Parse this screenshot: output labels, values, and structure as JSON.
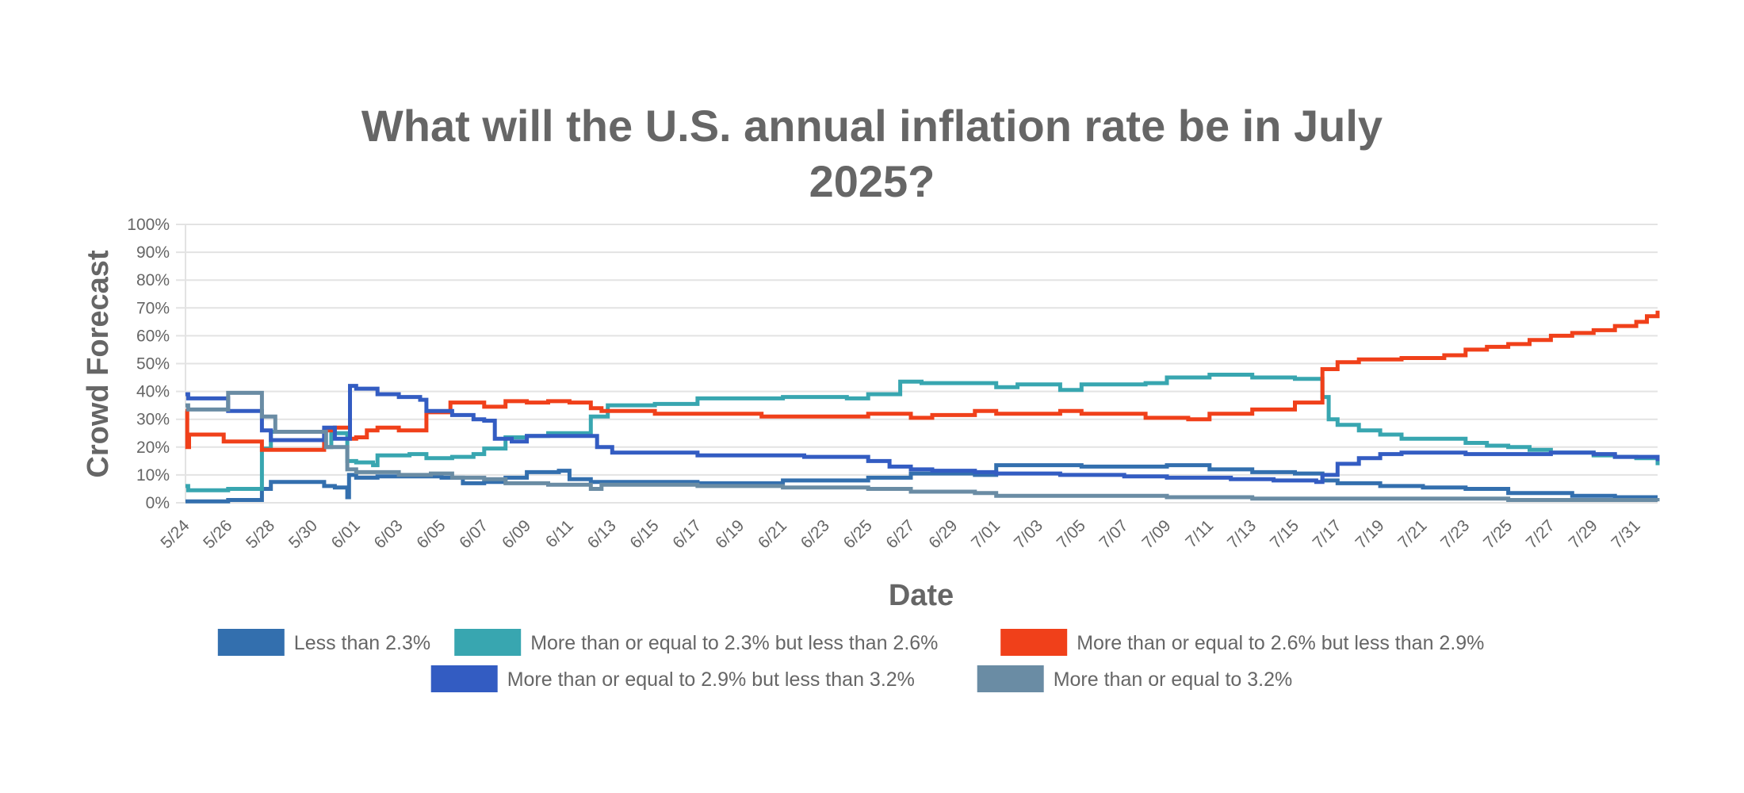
{
  "chart_data": {
    "type": "line",
    "step": true,
    "title": "What will the U.S. annual inflation rate be in July 2025?",
    "title_lines": [
      "What will the U.S. annual inflation rate be in July",
      "2025?"
    ],
    "xlabel": "Date",
    "ylabel": "Crowd Forecast",
    "ylim": [
      0,
      100
    ],
    "xlim": [
      "2025-05-24T00:00",
      "2025-08-01T00:00"
    ],
    "grid": true,
    "legend_position": "bottom",
    "y_ticks": [
      "0%",
      "10%",
      "20%",
      "30%",
      "40%",
      "50%",
      "60%",
      "70%",
      "80%",
      "90%",
      "100%"
    ],
    "x_ticks": [
      {
        "date": "2025-05-24",
        "label": "5/24"
      },
      {
        "date": "2025-05-26",
        "label": "5/26"
      },
      {
        "date": "2025-05-28",
        "label": "5/28"
      },
      {
        "date": "2025-05-30",
        "label": "5/30"
      },
      {
        "date": "2025-06-01",
        "label": "6/01"
      },
      {
        "date": "2025-06-03",
        "label": "6/03"
      },
      {
        "date": "2025-06-05",
        "label": "6/05"
      },
      {
        "date": "2025-06-07",
        "label": "6/07"
      },
      {
        "date": "2025-06-09",
        "label": "6/09"
      },
      {
        "date": "2025-06-11",
        "label": "6/11"
      },
      {
        "date": "2025-06-13",
        "label": "6/13"
      },
      {
        "date": "2025-06-15",
        "label": "6/15"
      },
      {
        "date": "2025-06-17",
        "label": "6/17"
      },
      {
        "date": "2025-06-19",
        "label": "6/19"
      },
      {
        "date": "2025-06-21",
        "label": "6/21"
      },
      {
        "date": "2025-06-23",
        "label": "6/23"
      },
      {
        "date": "2025-06-25",
        "label": "6/25"
      },
      {
        "date": "2025-06-27",
        "label": "6/27"
      },
      {
        "date": "2025-06-29",
        "label": "6/29"
      },
      {
        "date": "2025-07-01",
        "label": "7/01"
      },
      {
        "date": "2025-07-03",
        "label": "7/03"
      },
      {
        "date": "2025-07-05",
        "label": "7/05"
      },
      {
        "date": "2025-07-07",
        "label": "7/07"
      },
      {
        "date": "2025-07-09",
        "label": "7/09"
      },
      {
        "date": "2025-07-11",
        "label": "7/11"
      },
      {
        "date": "2025-07-13",
        "label": "7/13"
      },
      {
        "date": "2025-07-15",
        "label": "7/15"
      },
      {
        "date": "2025-07-17",
        "label": "7/17"
      },
      {
        "date": "2025-07-19",
        "label": "7/19"
      },
      {
        "date": "2025-07-21",
        "label": "7/21"
      },
      {
        "date": "2025-07-23",
        "label": "7/23"
      },
      {
        "date": "2025-07-25",
        "label": "7/25"
      },
      {
        "date": "2025-07-27",
        "label": "7/27"
      },
      {
        "date": "2025-07-29",
        "label": "7/29"
      },
      {
        "date": "2025-07-31",
        "label": "7/31"
      }
    ],
    "series": [
      {
        "name": "Less than 2.3%",
        "color": "#336fae",
        "points": [
          [
            "2025-05-24T00:00",
            0.5
          ],
          [
            "2025-05-26T00:00",
            1
          ],
          [
            "2025-05-27T14:00",
            5
          ],
          [
            "2025-05-28T00:00",
            7.5
          ],
          [
            "2025-05-30T12:00",
            6
          ],
          [
            "2025-05-31T00:00",
            5.5
          ],
          [
            "2025-05-31T14:00",
            2
          ],
          [
            "2025-05-31T16:00",
            10
          ],
          [
            "2025-06-01T00:00",
            9
          ],
          [
            "2025-06-02T00:00",
            9.5
          ],
          [
            "2025-06-05T00:00",
            9
          ],
          [
            "2025-06-06T00:00",
            7
          ],
          [
            "2025-06-07T00:00",
            7.5
          ],
          [
            "2025-06-08T00:00",
            9
          ],
          [
            "2025-06-09T00:00",
            11
          ],
          [
            "2025-06-10T12:00",
            11.5
          ],
          [
            "2025-06-11T00:00",
            8.5
          ],
          [
            "2025-06-12T00:00",
            7.5
          ],
          [
            "2025-06-17T00:00",
            7
          ],
          [
            "2025-06-21T00:00",
            8
          ],
          [
            "2025-06-25T00:00",
            9
          ],
          [
            "2025-06-27T00:00",
            10.5
          ],
          [
            "2025-06-30T00:00",
            10
          ],
          [
            "2025-07-01T00:00",
            13.5
          ],
          [
            "2025-07-05T00:00",
            13
          ],
          [
            "2025-07-09T00:00",
            13.5
          ],
          [
            "2025-07-11T00:00",
            12
          ],
          [
            "2025-07-13T00:00",
            11
          ],
          [
            "2025-07-15T00:00",
            10.5
          ],
          [
            "2025-07-16T07:00",
            8
          ],
          [
            "2025-07-17T00:00",
            7
          ],
          [
            "2025-07-19T00:00",
            6
          ],
          [
            "2025-07-21T00:00",
            5.5
          ],
          [
            "2025-07-23T00:00",
            5
          ],
          [
            "2025-07-25T00:00",
            3.5
          ],
          [
            "2025-07-28T00:00",
            2.5
          ],
          [
            "2025-07-30T00:00",
            2
          ],
          [
            "2025-08-01T00:00",
            2
          ]
        ]
      },
      {
        "name": "More than or equal to 2.3% but less than 2.6%",
        "color": "#38a6b0",
        "points": [
          [
            "2025-05-24T00:00",
            6
          ],
          [
            "2025-05-24T03:00",
            4.5
          ],
          [
            "2025-05-26T00:00",
            5
          ],
          [
            "2025-05-27T14:00",
            19.5
          ],
          [
            "2025-05-28T00:00",
            25.5
          ],
          [
            "2025-05-30T14:00",
            20
          ],
          [
            "2025-05-30T20:00",
            25
          ],
          [
            "2025-05-31T14:00",
            15
          ],
          [
            "2025-06-01T00:00",
            14.5
          ],
          [
            "2025-06-01T19:00",
            13.5
          ],
          [
            "2025-06-02T00:00",
            17
          ],
          [
            "2025-06-03T12:00",
            17.5
          ],
          [
            "2025-06-04T07:00",
            16
          ],
          [
            "2025-06-05T12:00",
            16.5
          ],
          [
            "2025-06-06T12:00",
            17.5
          ],
          [
            "2025-06-07T00:00",
            19.5
          ],
          [
            "2025-06-08T00:00",
            23.5
          ],
          [
            "2025-06-09T00:00",
            24
          ],
          [
            "2025-06-10T00:00",
            25
          ],
          [
            "2025-06-12T00:00",
            31
          ],
          [
            "2025-06-12T19:00",
            35
          ],
          [
            "2025-06-15T00:00",
            35.5
          ],
          [
            "2025-06-17T00:00",
            37.5
          ],
          [
            "2025-06-21T00:00",
            38
          ],
          [
            "2025-06-24T00:00",
            37.5
          ],
          [
            "2025-06-25T00:00",
            39
          ],
          [
            "2025-06-26T12:00",
            43.5
          ],
          [
            "2025-06-27T12:00",
            43
          ],
          [
            "2025-07-01T00:00",
            41.5
          ],
          [
            "2025-07-02T00:00",
            42.5
          ],
          [
            "2025-07-04T00:00",
            40.5
          ],
          [
            "2025-07-05T00:00",
            42.5
          ],
          [
            "2025-07-08T00:00",
            43
          ],
          [
            "2025-07-09T00:00",
            45
          ],
          [
            "2025-07-11T00:00",
            46
          ],
          [
            "2025-07-13T00:00",
            45
          ],
          [
            "2025-07-15T00:00",
            44.5
          ],
          [
            "2025-07-16T07:00",
            38
          ],
          [
            "2025-07-16T14:00",
            30
          ],
          [
            "2025-07-17T00:00",
            28
          ],
          [
            "2025-07-18T00:00",
            26
          ],
          [
            "2025-07-19T00:00",
            24.5
          ],
          [
            "2025-07-20T00:00",
            23
          ],
          [
            "2025-07-23T00:00",
            21.5
          ],
          [
            "2025-07-24T00:00",
            20.5
          ],
          [
            "2025-07-25T00:00",
            20
          ],
          [
            "2025-07-26T00:00",
            19
          ],
          [
            "2025-07-27T00:00",
            18
          ],
          [
            "2025-07-29T00:00",
            17
          ],
          [
            "2025-07-30T00:00",
            16.5
          ],
          [
            "2025-07-31T00:00",
            16
          ],
          [
            "2025-08-01T00:00",
            13.5
          ]
        ]
      },
      {
        "name": "More than or equal to 2.6% but less than 2.9%",
        "color": "#f0401a",
        "points": [
          [
            "2025-05-24T00:00",
            33
          ],
          [
            "2025-05-24T02:00",
            20
          ],
          [
            "2025-05-24T04:00",
            24.5
          ],
          [
            "2025-05-25T19:00",
            22
          ],
          [
            "2025-05-27T14:00",
            19
          ],
          [
            "2025-05-30T12:00",
            26
          ],
          [
            "2025-05-31T00:00",
            27
          ],
          [
            "2025-05-31T17:00",
            23
          ],
          [
            "2025-06-01T00:00",
            23.5
          ],
          [
            "2025-06-01T12:00",
            26
          ],
          [
            "2025-06-02T00:00",
            27
          ],
          [
            "2025-06-03T00:00",
            26
          ],
          [
            "2025-06-04T07:00",
            32.5
          ],
          [
            "2025-06-05T10:00",
            36
          ],
          [
            "2025-06-07T00:00",
            34.5
          ],
          [
            "2025-06-08T00:00",
            36.5
          ],
          [
            "2025-06-09T00:00",
            36
          ],
          [
            "2025-06-10T00:00",
            36.5
          ],
          [
            "2025-06-11T00:00",
            36
          ],
          [
            "2025-06-12T00:00",
            34
          ],
          [
            "2025-06-12T12:00",
            33
          ],
          [
            "2025-06-15T00:00",
            32
          ],
          [
            "2025-06-20T00:00",
            31
          ],
          [
            "2025-06-25T00:00",
            32
          ],
          [
            "2025-06-27T00:00",
            30.5
          ],
          [
            "2025-06-28T00:00",
            31.5
          ],
          [
            "2025-06-30T00:00",
            33
          ],
          [
            "2025-07-01T00:00",
            32
          ],
          [
            "2025-07-04T00:00",
            33
          ],
          [
            "2025-07-05T00:00",
            32
          ],
          [
            "2025-07-08T00:00",
            30.5
          ],
          [
            "2025-07-10T00:00",
            30
          ],
          [
            "2025-07-11T00:00",
            32
          ],
          [
            "2025-07-13T00:00",
            33.5
          ],
          [
            "2025-07-15T00:00",
            36
          ],
          [
            "2025-07-16T07:00",
            48
          ],
          [
            "2025-07-17T00:00",
            50.5
          ],
          [
            "2025-07-18T00:00",
            51.5
          ],
          [
            "2025-07-20T00:00",
            52
          ],
          [
            "2025-07-22T00:00",
            53
          ],
          [
            "2025-07-23T00:00",
            55
          ],
          [
            "2025-07-24T00:00",
            56
          ],
          [
            "2025-07-25T00:00",
            57
          ],
          [
            "2025-07-26T00:00",
            58.5
          ],
          [
            "2025-07-27T00:00",
            60
          ],
          [
            "2025-07-28T00:00",
            61
          ],
          [
            "2025-07-29T00:00",
            62
          ],
          [
            "2025-07-30T00:00",
            63.5
          ],
          [
            "2025-07-31T00:00",
            65
          ],
          [
            "2025-07-31T12:00",
            67
          ],
          [
            "2025-08-01T00:00",
            69
          ]
        ]
      },
      {
        "name": "More than or equal to 2.9% but less than 3.2%",
        "color": "#335cc2",
        "points": [
          [
            "2025-05-24T00:00",
            39
          ],
          [
            "2025-05-24T03:00",
            37.5
          ],
          [
            "2025-05-26T00:00",
            33
          ],
          [
            "2025-05-27T14:00",
            26
          ],
          [
            "2025-05-28T00:00",
            22.5
          ],
          [
            "2025-05-30T12:00",
            27
          ],
          [
            "2025-05-31T00:00",
            23
          ],
          [
            "2025-05-31T17:00",
            42
          ],
          [
            "2025-06-01T00:00",
            41
          ],
          [
            "2025-06-02T00:00",
            39
          ],
          [
            "2025-06-03T00:00",
            38
          ],
          [
            "2025-06-04T00:00",
            37
          ],
          [
            "2025-06-04T07:00",
            33
          ],
          [
            "2025-06-05T12:00",
            31.5
          ],
          [
            "2025-06-06T12:00",
            30
          ],
          [
            "2025-06-07T00:00",
            29.5
          ],
          [
            "2025-06-07T12:00",
            23
          ],
          [
            "2025-06-08T07:00",
            22
          ],
          [
            "2025-06-09T00:00",
            24
          ],
          [
            "2025-06-12T07:00",
            20
          ],
          [
            "2025-06-13T00:00",
            18
          ],
          [
            "2025-06-17T00:00",
            17
          ],
          [
            "2025-06-22T00:00",
            16.5
          ],
          [
            "2025-06-25T00:00",
            15
          ],
          [
            "2025-06-26T00:00",
            13
          ],
          [
            "2025-06-27T00:00",
            12
          ],
          [
            "2025-06-28T00:00",
            11.5
          ],
          [
            "2025-06-30T00:00",
            11
          ],
          [
            "2025-07-01T00:00",
            10.5
          ],
          [
            "2025-07-04T00:00",
            10
          ],
          [
            "2025-07-07T00:00",
            9.5
          ],
          [
            "2025-07-09T00:00",
            9
          ],
          [
            "2025-07-12T00:00",
            8.5
          ],
          [
            "2025-07-14T00:00",
            8
          ],
          [
            "2025-07-16T00:00",
            7.5
          ],
          [
            "2025-07-16T07:00",
            10
          ],
          [
            "2025-07-17T00:00",
            14
          ],
          [
            "2025-07-18T00:00",
            16
          ],
          [
            "2025-07-19T00:00",
            17.5
          ],
          [
            "2025-07-20T00:00",
            18
          ],
          [
            "2025-07-23T00:00",
            17.5
          ],
          [
            "2025-07-27T00:00",
            18
          ],
          [
            "2025-07-29T00:00",
            17.5
          ],
          [
            "2025-07-30T00:00",
            16.5
          ],
          [
            "2025-08-01T00:00",
            15
          ]
        ]
      },
      {
        "name": "More than or equal to 3.2%",
        "color": "#6a8ca4",
        "points": [
          [
            "2025-05-24T00:00",
            35
          ],
          [
            "2025-05-24T03:00",
            33.5
          ],
          [
            "2025-05-26T00:00",
            39.5
          ],
          [
            "2025-05-27T14:00",
            31
          ],
          [
            "2025-05-28T05:00",
            25.5
          ],
          [
            "2025-05-30T14:00",
            20
          ],
          [
            "2025-05-31T14:00",
            12
          ],
          [
            "2025-06-01T00:00",
            11
          ],
          [
            "2025-06-03T00:00",
            10
          ],
          [
            "2025-06-04T12:00",
            10.5
          ],
          [
            "2025-06-05T12:00",
            9
          ],
          [
            "2025-06-07T00:00",
            8.5
          ],
          [
            "2025-06-08T00:00",
            7
          ],
          [
            "2025-06-10T00:00",
            6.5
          ],
          [
            "2025-06-12T00:00",
            5
          ],
          [
            "2025-06-12T12:00",
            6.5
          ],
          [
            "2025-06-17T00:00",
            6
          ],
          [
            "2025-06-21T00:00",
            5.5
          ],
          [
            "2025-06-25T00:00",
            5
          ],
          [
            "2025-06-27T00:00",
            4
          ],
          [
            "2025-06-30T00:00",
            3.5
          ],
          [
            "2025-07-01T00:00",
            2.5
          ],
          [
            "2025-07-09T00:00",
            2
          ],
          [
            "2025-07-13T00:00",
            1.5
          ],
          [
            "2025-07-25T00:00",
            1
          ],
          [
            "2025-08-01T00:00",
            0.5
          ]
        ]
      }
    ]
  }
}
